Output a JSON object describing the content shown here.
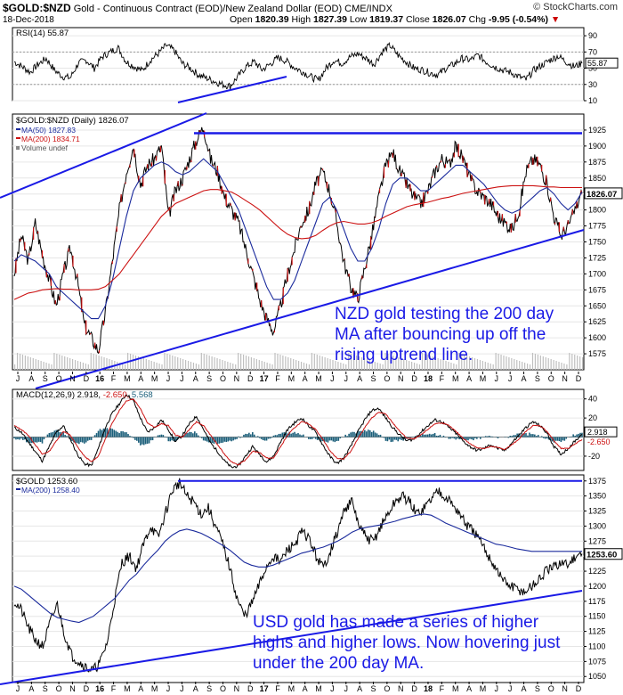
{
  "header": {
    "symbol": "$GOLD:$NZD",
    "description": "Gold - Continuous Contract (EOD)/New Zealand Dollar (EOD) CME/INDX",
    "brand": "© StockCharts.com",
    "date": "18-Dec-2018",
    "open_label": "Open",
    "open": "1820.39",
    "high_label": "High",
    "high": "1827.39",
    "low_label": "Low",
    "low": "1819.37",
    "close_label": "Close",
    "close": "1826.07",
    "chg_label": "Chg",
    "chg": "-9.95 (-0.54%)"
  },
  "annotations": {
    "nzd_note": "NZD gold testing the 200 day MA after bouncing up off the rising uptrend line.",
    "usd_note": "USD gold has made a series of higher highs and higher lows. Now hovering just under the 200 day MA."
  },
  "colors": {
    "price": "#000000",
    "ma50": "#1a2a9c",
    "ma200": "#cc1111",
    "trend": "#1a1ae6",
    "volume": "#bfbfbf",
    "macd_hist": "#1b5f7a",
    "rsi": "#000000",
    "highlight": "#000000"
  },
  "chart_data": [
    {
      "type": "line",
      "panel": "RSI",
      "title": "RSI(14) 55.87",
      "last_value": 55.87,
      "ylim": [
        10,
        100
      ],
      "yticks": [
        90,
        70,
        50,
        30,
        10
      ],
      "reference_lines": [
        70,
        30
      ],
      "series": [
        {
          "name": "RSI(14)",
          "values": [
            58,
            52,
            45,
            55,
            62,
            48,
            40,
            38,
            56,
            60,
            50,
            64,
            70,
            75,
            58,
            52,
            47,
            60,
            68,
            78,
            72,
            56,
            50,
            42,
            38,
            34,
            30,
            28,
            40,
            52,
            58,
            48,
            55,
            63,
            59,
            51,
            46,
            40,
            35,
            50,
            60,
            56,
            64,
            68,
            62,
            55,
            70,
            78,
            66,
            58,
            50,
            48,
            44,
            42,
            50,
            55,
            62,
            60,
            66,
            58,
            52,
            48,
            45,
            40,
            36,
            48,
            54,
            60,
            65,
            58,
            52,
            56
          ]
        }
      ]
    },
    {
      "type": "line",
      "panel": "Price",
      "title": "$GOLD:$NZD (Daily) 1826.07",
      "legend": [
        "$GOLD:$NZD (Daily) 1826.07",
        "MA(50) 1827.83",
        "MA(200) 1834.71",
        "Volume undef"
      ],
      "ylim": [
        1550,
        1950
      ],
      "yticks": [
        1925,
        1900,
        1875,
        1850,
        1825,
        1800,
        1775,
        1750,
        1725,
        1700,
        1675,
        1650,
        1625,
        1600,
        1575
      ],
      "last_label": "1826.07",
      "x_month_labels": [
        "J",
        "A",
        "S",
        "O",
        "N",
        "D",
        "16",
        "F",
        "M",
        "A",
        "M",
        "J",
        "J",
        "A",
        "S",
        "O",
        "N",
        "D",
        "17",
        "F",
        "M",
        "A",
        "M",
        "J",
        "J",
        "A",
        "S",
        "O",
        "N",
        "D",
        "18",
        "F",
        "M",
        "A",
        "M",
        "J",
        "J",
        "A",
        "S",
        "O",
        "N",
        "D"
      ],
      "series": [
        {
          "name": "$GOLD:$NZD",
          "values": [
            1700,
            1760,
            1720,
            1780,
            1730,
            1690,
            1650,
            1700,
            1740,
            1690,
            1620,
            1600,
            1580,
            1640,
            1720,
            1800,
            1860,
            1900,
            1840,
            1870,
            1880,
            1900,
            1790,
            1830,
            1850,
            1880,
            1910,
            1930,
            1880,
            1860,
            1820,
            1800,
            1780,
            1740,
            1700,
            1660,
            1630,
            1610,
            1650,
            1700,
            1740,
            1780,
            1800,
            1840,
            1860,
            1830,
            1780,
            1720,
            1680,
            1660,
            1710,
            1760,
            1820,
            1870,
            1890,
            1860,
            1840,
            1820,
            1810,
            1830,
            1860,
            1880,
            1870,
            1900,
            1880,
            1850,
            1830,
            1820,
            1810,
            1790,
            1780,
            1770,
            1800,
            1860,
            1880,
            1870,
            1840,
            1790,
            1760,
            1775,
            1800,
            1826
          ]
        },
        {
          "name": "MA(50)",
          "value": 1827.83,
          "values": [
            1720,
            1730,
            1725,
            1720,
            1710,
            1700,
            1680,
            1670,
            1660,
            1650,
            1640,
            1630,
            1630,
            1650,
            1690,
            1740,
            1790,
            1830,
            1850,
            1860,
            1870,
            1875,
            1870,
            1860,
            1855,
            1860,
            1870,
            1880,
            1870,
            1860,
            1840,
            1820,
            1800,
            1770,
            1740,
            1710,
            1680,
            1660,
            1660,
            1670,
            1690,
            1720,
            1750,
            1780,
            1810,
            1820,
            1800,
            1770,
            1740,
            1720,
            1720,
            1740,
            1770,
            1810,
            1840,
            1850,
            1850,
            1840,
            1830,
            1830,
            1840,
            1850,
            1860,
            1870,
            1870,
            1860,
            1850,
            1840,
            1825,
            1810,
            1800,
            1795,
            1800,
            1810,
            1820,
            1830,
            1835,
            1825,
            1810,
            1800,
            1810,
            1828
          ]
        },
        {
          "name": "MA(200)",
          "value": 1834.71,
          "values": [
            1660,
            1665,
            1670,
            1672,
            1675,
            1676,
            1677,
            1676,
            1676,
            1675,
            1675,
            1675,
            1676,
            1680,
            1690,
            1700,
            1715,
            1730,
            1745,
            1760,
            1775,
            1790,
            1800,
            1810,
            1815,
            1820,
            1825,
            1830,
            1832,
            1832,
            1830,
            1828,
            1822,
            1815,
            1808,
            1800,
            1790,
            1780,
            1770,
            1762,
            1757,
            1755,
            1756,
            1760,
            1768,
            1775,
            1780,
            1782,
            1780,
            1778,
            1778,
            1780,
            1784,
            1790,
            1795,
            1800,
            1805,
            1808,
            1810,
            1812,
            1815,
            1818,
            1820,
            1823,
            1826,
            1828,
            1830,
            1832,
            1834,
            1836,
            1837,
            1838,
            1838,
            1838,
            1838,
            1837,
            1836,
            1836,
            1835,
            1835,
            1835,
            1835
          ]
        }
      ],
      "trendlines": {
        "resistance_level": 1920,
        "upper_channel": "rising",
        "lower_uptrend": "rising"
      }
    },
    {
      "type": "line",
      "panel": "MACD",
      "title": "MACD(12,26,9) 2.918, -2.650, 5.568",
      "values_label": {
        "macd": "2.918",
        "signal": "-2.650",
        "histogram": "5.568"
      },
      "ylim": [
        -35,
        50
      ],
      "yticks": [
        40,
        20,
        -20
      ],
      "last_labels": [
        "2.918",
        "-2.650"
      ],
      "series": [
        {
          "name": "MACD",
          "values": [
            10,
            5,
            -5,
            -15,
            -25,
            -10,
            5,
            12,
            -2,
            -18,
            -28,
            -30,
            -12,
            10,
            25,
            35,
            45,
            38,
            20,
            5,
            10,
            18,
            8,
            -5,
            2,
            14,
            22,
            8,
            -6,
            -15,
            -25,
            -32,
            -30,
            -20,
            -10,
            -18,
            -26,
            -20,
            -5,
            8,
            15,
            20,
            12,
            5,
            -8,
            -20,
            -28,
            -22,
            -10,
            5,
            18,
            28,
            30,
            20,
            10,
            2,
            -4,
            -2,
            5,
            12,
            18,
            16,
            10,
            4,
            -4,
            -10,
            -14,
            -12,
            -8,
            -12,
            -14,
            -6,
            2,
            10,
            16,
            12,
            4,
            -10,
            -18,
            -12,
            -4,
            3
          ]
        },
        {
          "name": "Signal",
          "values": [
            12,
            8,
            2,
            -8,
            -18,
            -15,
            -4,
            6,
            2,
            -10,
            -20,
            -26,
            -20,
            -2,
            15,
            28,
            38,
            40,
            30,
            15,
            10,
            14,
            12,
            2,
            0,
            8,
            16,
            12,
            2,
            -8,
            -18,
            -26,
            -29,
            -24,
            -15,
            -16,
            -22,
            -22,
            -10,
            2,
            10,
            16,
            14,
            8,
            -2,
            -14,
            -22,
            -23,
            -15,
            -2,
            10,
            20,
            26,
            24,
            15,
            6,
            -1,
            -2,
            2,
            8,
            14,
            15,
            12,
            6,
            -1,
            -7,
            -11,
            -12,
            -10,
            -11,
            -13,
            -8,
            -2,
            6,
            12,
            12,
            6,
            -4,
            -12,
            -12,
            -7,
            -2.65
          ]
        }
      ]
    },
    {
      "type": "line",
      "panel": "USD Gold",
      "title": "$GOLD 1253.60",
      "legend": [
        "$GOLD 1253.60",
        "MA(200) 1258.40"
      ],
      "ylim": [
        1040,
        1385
      ],
      "yticks": [
        1375,
        1350,
        1325,
        1300,
        1275,
        1250,
        1225,
        1200,
        1175,
        1150,
        1125,
        1100,
        1075,
        1050
      ],
      "last_label": "1253.60",
      "x_month_labels": [
        "J",
        "A",
        "S",
        "O",
        "N",
        "D",
        "16",
        "F",
        "M",
        "A",
        "M",
        "J",
        "J",
        "A",
        "S",
        "O",
        "N",
        "D",
        "17",
        "F",
        "M",
        "A",
        "M",
        "J",
        "J",
        "A",
        "S",
        "O",
        "N",
        "D",
        "18",
        "F",
        "M",
        "A",
        "M",
        "J",
        "J",
        "A",
        "S",
        "O",
        "N",
        "D"
      ],
      "series": [
        {
          "name": "$GOLD",
          "values": [
            1175,
            1160,
            1130,
            1110,
            1100,
            1140,
            1170,
            1120,
            1085,
            1075,
            1065,
            1060,
            1075,
            1110,
            1180,
            1240,
            1250,
            1230,
            1270,
            1300,
            1280,
            1320,
            1360,
            1372,
            1350,
            1340,
            1320,
            1330,
            1300,
            1270,
            1230,
            1180,
            1150,
            1170,
            1200,
            1230,
            1250,
            1240,
            1260,
            1270,
            1290,
            1280,
            1250,
            1230,
            1260,
            1290,
            1330,
            1340,
            1300,
            1280,
            1275,
            1300,
            1320,
            1340,
            1350,
            1340,
            1320,
            1330,
            1345,
            1360,
            1350,
            1335,
            1320,
            1300,
            1290,
            1270,
            1250,
            1230,
            1210,
            1200,
            1195,
            1190,
            1200,
            1210,
            1225,
            1230,
            1240,
            1235,
            1250,
            1254
          ]
        },
        {
          "name": "MA(200)",
          "value": 1258.4,
          "values": [
            1200,
            1195,
            1185,
            1175,
            1165,
            1155,
            1148,
            1145,
            1142,
            1140,
            1145,
            1150,
            1160,
            1170,
            1180,
            1195,
            1210,
            1220,
            1235,
            1248,
            1260,
            1275,
            1285,
            1292,
            1295,
            1292,
            1288,
            1282,
            1275,
            1268,
            1260,
            1250,
            1240,
            1235,
            1232,
            1232,
            1235,
            1240,
            1245,
            1250,
            1255,
            1258,
            1262,
            1265,
            1270,
            1275,
            1282,
            1290,
            1295,
            1298,
            1300,
            1302,
            1305,
            1308,
            1312,
            1315,
            1318,
            1320,
            1318,
            1312,
            1305,
            1300,
            1295,
            1290,
            1285,
            1280,
            1275,
            1270,
            1268,
            1265,
            1262,
            1260,
            1258,
            1258,
            1258,
            1258,
            1258,
            1258,
            1258,
            1258
          ]
        }
      ],
      "trendlines": {
        "resistance_level": 1375,
        "lower_uptrend": "rising"
      }
    }
  ]
}
